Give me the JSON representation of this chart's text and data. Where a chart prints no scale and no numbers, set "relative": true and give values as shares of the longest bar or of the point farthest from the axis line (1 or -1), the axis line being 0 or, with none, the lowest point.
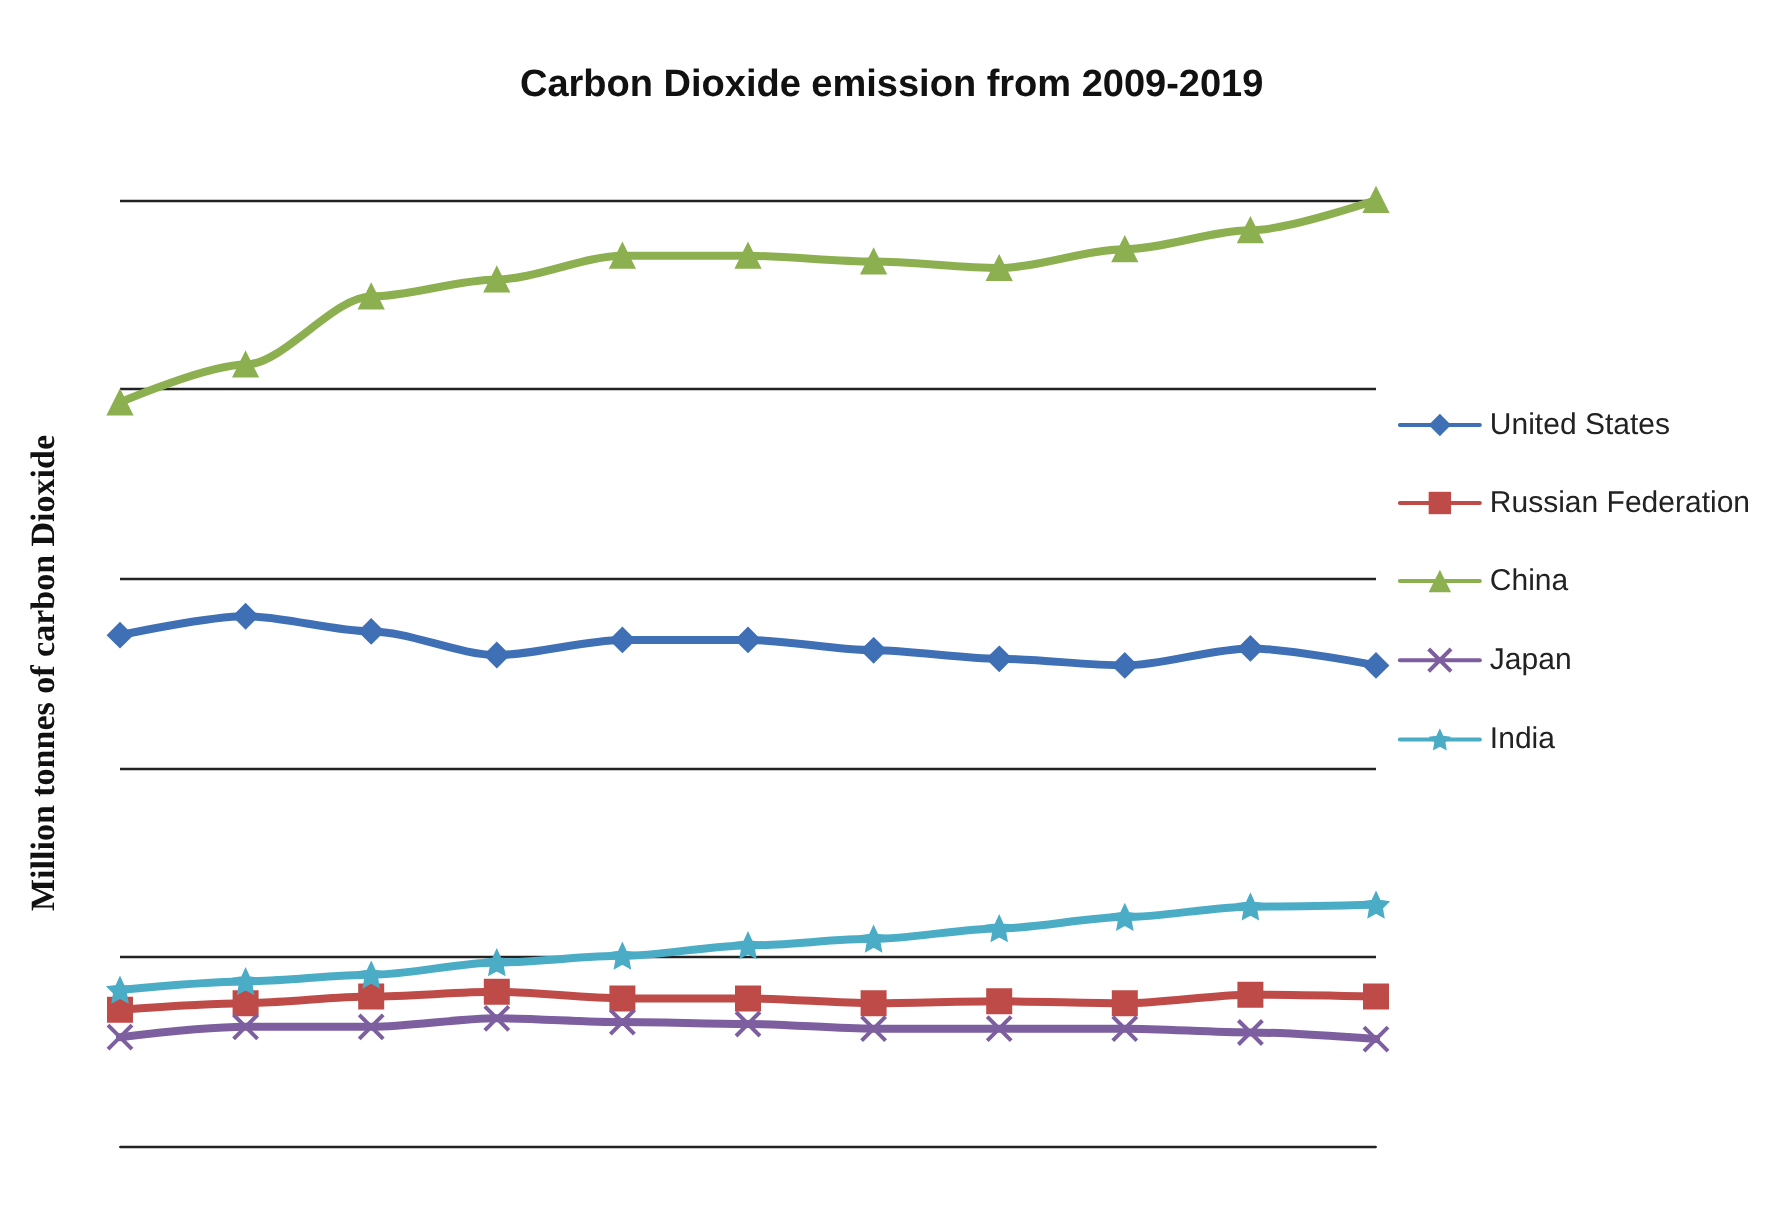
{
  "chart_data": {
    "type": "line",
    "title": "Carbon Dioxide emission from 2009-2019",
    "ylabel": "Million tonnes of carbon Dioxide",
    "relative": true,
    "grid": "y",
    "legend": "right",
    "categories": [
      null,
      null,
      null,
      null,
      null,
      null,
      null,
      null,
      null,
      null,
      null
    ],
    "series": [
      {
        "name": "United States",
        "color": "#3f6fb5",
        "marker": "diamond",
        "values": [
          0.54,
          0.56,
          0.544,
          0.519,
          0.535,
          0.535,
          0.524,
          0.515,
          0.508,
          0.526,
          0.508
        ]
      },
      {
        "name": "Russian Federation",
        "color": "#be4b48",
        "marker": "square",
        "values": [
          0.144,
          0.151,
          0.158,
          0.163,
          0.156,
          0.156,
          0.151,
          0.153,
          0.151,
          0.16,
          0.158
        ]
      },
      {
        "name": "China",
        "color": "#8cb04f",
        "marker": "triangle",
        "values": [
          0.786,
          0.826,
          0.898,
          0.916,
          0.941,
          0.941,
          0.935,
          0.928,
          0.948,
          0.968,
          1
        ]
      },
      {
        "name": "Japan",
        "color": "#7d5fa0",
        "marker": "cross",
        "values": [
          0.115,
          0.126,
          0.126,
          0.135,
          0.131,
          0.129,
          0.124,
          0.124,
          0.124,
          0.12,
          0.113
        ]
      },
      {
        "name": "India",
        "color": "#4bacc6",
        "marker": "star",
        "values": [
          0.165,
          0.174,
          0.181,
          0.194,
          0.201,
          0.212,
          0.219,
          0.23,
          0.242,
          0.253,
          0.255
        ]
      }
    ]
  }
}
